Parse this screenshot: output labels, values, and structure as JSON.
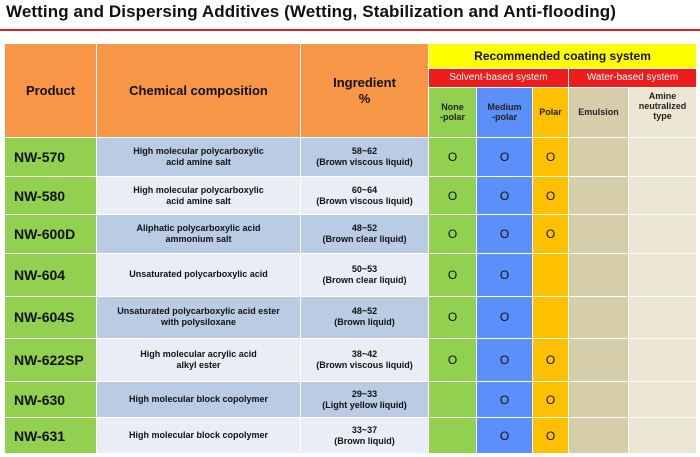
{
  "page": {
    "title": "Wetting and Dispersing Additives (Wetting, Stabilization and Anti-flooding)"
  },
  "table": {
    "headers": {
      "product": "Product",
      "composition": "Chemical composition",
      "ingredient": "Ingredient\n%",
      "recommended": "Recommended coating system",
      "solvent_based": "Solvent-based system",
      "water_based": "Water-based system",
      "nonpolar": "None\n-polar",
      "medium_polar": "Medium\n-polar",
      "polar": "Polar",
      "emulsion": "Emulsion",
      "amine": "Amine\nneutralized\ntype"
    },
    "colors": {
      "header_orange": "#f79646",
      "recommended_yellow": "#ffff00",
      "system_red": "#ee1c1c",
      "nonpolar_green": "#92d050",
      "medium_blue": "#5b8ff9",
      "polar_gold": "#ffc000",
      "emulsion_tan": "#d6ceaa",
      "amine_cream": "#ece7d3"
    },
    "rows": [
      {
        "product": "NW-570",
        "composition": "High molecular polycarboxylic\nacid amine salt",
        "ingredient": "58~62\n(Brown viscous liquid)",
        "nonpolar": "O",
        "medium": "O",
        "polar": "O",
        "emulsion": "",
        "amine": ""
      },
      {
        "product": "NW-580",
        "composition": "High molecular polycarboxylic\nacid amine salt",
        "ingredient": "60~64\n(Brown viscous liquid)",
        "nonpolar": "O",
        "medium": "O",
        "polar": "O",
        "emulsion": "",
        "amine": ""
      },
      {
        "product": "NW-600D",
        "composition": "Aliphatic polycarboxylic acid\nammonium salt",
        "ingredient": "48~52\n(Brown clear liquid)",
        "nonpolar": "O",
        "medium": "O",
        "polar": "O",
        "emulsion": "",
        "amine": ""
      },
      {
        "product": "NW-604",
        "composition": "Unsaturated polycarboxylic acid",
        "ingredient": "50~53\n(Brown clear liquid)",
        "nonpolar": "O",
        "medium": "O",
        "polar": "",
        "emulsion": "",
        "amine": ""
      },
      {
        "product": "NW-604S",
        "composition": "Unsaturated polycarboxylic acid ester\nwith polysiloxane",
        "ingredient": "48~52\n(Brown liquid)",
        "nonpolar": "O",
        "medium": "O",
        "polar": "",
        "emulsion": "",
        "amine": ""
      },
      {
        "product": "NW-622SP",
        "composition": "High molecular acrylic acid\nalkyl ester",
        "ingredient": "38~42\n(Brown viscous liquid)",
        "nonpolar": "O",
        "medium": "O",
        "polar": "O",
        "emulsion": "",
        "amine": ""
      },
      {
        "product": "NW-630",
        "composition": "High molecular block copolymer",
        "ingredient": "29~33\n(Light yellow liquid)",
        "nonpolar": "",
        "medium": "O",
        "polar": "O",
        "emulsion": "",
        "amine": ""
      },
      {
        "product": "NW-631",
        "composition": "High molecular block copolymer",
        "ingredient": "33~37\n(Brown liquid)",
        "nonpolar": "",
        "medium": "O",
        "polar": "O",
        "emulsion": "",
        "amine": ""
      }
    ]
  }
}
